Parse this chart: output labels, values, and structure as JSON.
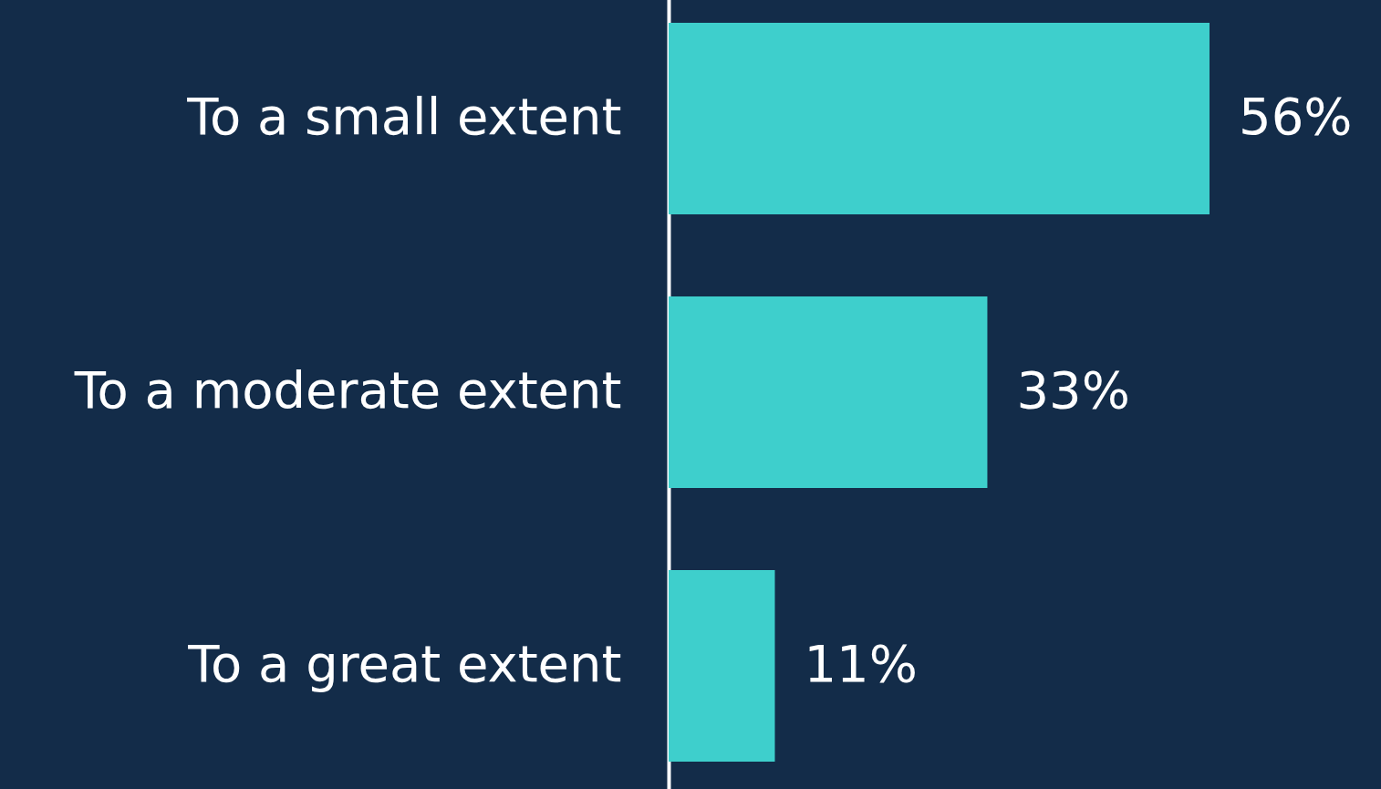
{
  "chart_data": {
    "type": "bar",
    "orientation": "horizontal",
    "categories": [
      "To a small extent",
      "To a moderate extent",
      "To a great extent"
    ],
    "values": [
      56,
      33,
      11
    ],
    "value_labels": [
      "56%",
      "33%",
      "11%"
    ],
    "color": "#3ecfcc"
  }
}
